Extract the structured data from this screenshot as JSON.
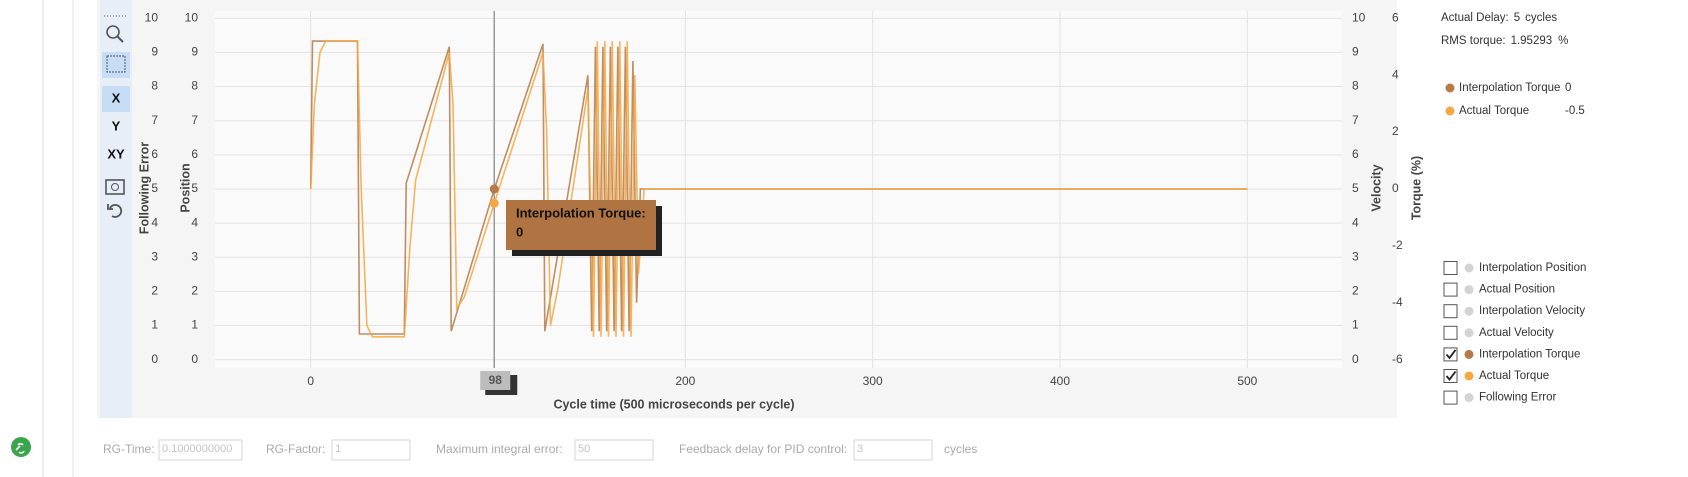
{
  "toolbar": {
    "buttons": [
      "X",
      "Y",
      "XY"
    ]
  },
  "chart_data": {
    "type": "line",
    "x_label": "Cycle time (500 microseconds per cycle)",
    "xlim": [
      -50,
      550
    ],
    "xticks": [
      0,
      200,
      300,
      400,
      500
    ],
    "grid": true,
    "y_axes": [
      {
        "label": "Following Error",
        "lim": [
          0,
          10
        ],
        "ticks": [
          0,
          1,
          2,
          3,
          4,
          5,
          6,
          7,
          8,
          9,
          10
        ],
        "side": "left"
      },
      {
        "label": "Position",
        "lim": [
          0,
          10
        ],
        "ticks": [
          0,
          1,
          2,
          3,
          4,
          5,
          6,
          7,
          8,
          9,
          10
        ],
        "side": "left"
      },
      {
        "label": "Velocity",
        "lim": [
          0,
          10
        ],
        "ticks": [
          0,
          1,
          2,
          3,
          4,
          5,
          6,
          7,
          8,
          9,
          10
        ],
        "side": "right"
      },
      {
        "label": "Torque (%)",
        "lim": [
          -6,
          6
        ],
        "ticks": [
          -6,
          -4,
          -2,
          0,
          2,
          4,
          6
        ],
        "side": "right"
      }
    ],
    "series": [
      {
        "name": "Interpolation Torque",
        "color": "#b47a48",
        "axis": 3,
        "current_value": 0,
        "x": [
          0,
          1,
          25,
          26,
          50,
          51,
          74,
          75,
          98,
          124,
          125,
          148,
          150,
          152,
          154,
          156,
          158,
          160,
          162,
          164,
          166,
          168,
          170,
          172,
          174,
          176,
          500
        ],
        "values": [
          0,
          5.2,
          5.2,
          -5.1,
          -5.1,
          0.2,
          5,
          -5,
          0,
          5.1,
          -5,
          4,
          -5,
          5,
          -5,
          5,
          -5,
          5,
          -5,
          5,
          -5,
          5,
          -5,
          4.5,
          -4,
          0,
          0
        ]
      },
      {
        "name": "Actual Torque",
        "color": "#f5a742",
        "axis": 3,
        "current_value": -0.5,
        "x": [
          0,
          2,
          5,
          8,
          25,
          27,
          30,
          33,
          50,
          53,
          56,
          74,
          76,
          78,
          82,
          98,
          124,
          126,
          128,
          132,
          148,
          151,
          153,
          155,
          157,
          159,
          161,
          163,
          165,
          167,
          169,
          171,
          173,
          175,
          178,
          500
        ],
        "values": [
          0,
          3,
          4.8,
          5.2,
          5.2,
          0,
          -4.8,
          -5.2,
          -5.2,
          -2,
          0.3,
          4.8,
          3,
          -4.2,
          -3.8,
          -0.5,
          4.8,
          2,
          -4.8,
          -3.5,
          3.5,
          -5.2,
          5.2,
          -5.2,
          5.2,
          -5.2,
          5.2,
          -5.2,
          5.2,
          -5.2,
          5.2,
          -5.2,
          4,
          -3,
          0,
          0
        ]
      }
    ],
    "crosshair_x": 98,
    "tooltip": {
      "title": "Interpolation Torque:",
      "value": 0
    }
  },
  "stats": {
    "actual_delay_label": "Actual Delay:",
    "actual_delay": 5,
    "actual_delay_unit": "cycles",
    "rms_label": "RMS torque:",
    "rms": 1.95293,
    "rms_unit": "%"
  },
  "toggles": [
    {
      "label": "Interpolation Position",
      "checked": false,
      "color": "#d3d3d3"
    },
    {
      "label": "Actual Position",
      "checked": false,
      "color": "#d3d3d3"
    },
    {
      "label": "Interpolation Velocity",
      "checked": false,
      "color": "#d3d3d3"
    },
    {
      "label": "Actual Velocity",
      "checked": false,
      "color": "#d3d3d3"
    },
    {
      "label": "Interpolation Torque",
      "checked": true,
      "color": "#b47a48"
    },
    {
      "label": "Actual Torque",
      "checked": true,
      "color": "#f5a742"
    },
    {
      "label": "Following Error",
      "checked": false,
      "color": "#d3d3d3"
    }
  ],
  "form": [
    {
      "label": "RG-Time:",
      "value": "0.1000000000"
    },
    {
      "label": "RG-Factor:",
      "value": "1"
    },
    {
      "label": "Maximum integral error:",
      "value": "50"
    },
    {
      "label": "Feedback delay for PID control:",
      "value": "3",
      "unit": "cycles"
    }
  ]
}
